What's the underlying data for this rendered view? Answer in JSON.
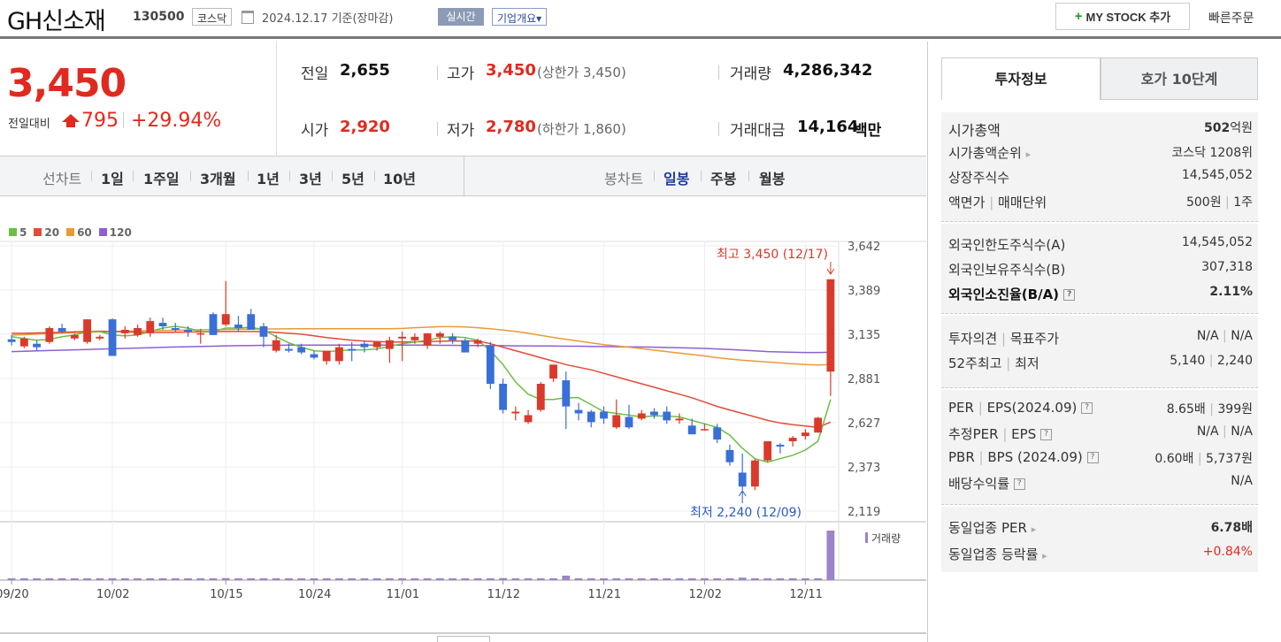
{
  "header": {
    "company": "GH신소재",
    "code": "130500",
    "market": "코스닥",
    "asof": "2024.12.17 기준(장마감)",
    "realtime": "실시간",
    "overview": "기업개요",
    "overview_caret": "▾",
    "mystock_plus": "+",
    "mystock": "MY STOCK 추가",
    "quick_order": "빠른주문"
  },
  "price": {
    "current": "3,450",
    "change_label": "전일대비",
    "change": "795",
    "change_pct": "+29.94%",
    "prev_label": "전일",
    "prev": "2,655",
    "open_label": "시가",
    "open": "2,920",
    "high_label": "고가",
    "high": "3,450",
    "upper_limit": "(상한가 3,450)",
    "low_label": "저가",
    "low": "2,780",
    "lower_limit": "(하한가 1,860)",
    "vol_label": "거래량",
    "vol": "4,286,342",
    "amt_label": "거래대금",
    "amt": "14,164",
    "amt_unit": "백만"
  },
  "tabs": {
    "line_label": "선차트",
    "periods": [
      "1일",
      "1주일",
      "3개월",
      "1년",
      "3년",
      "5년",
      "10년"
    ],
    "candle_label": "봉차트",
    "candles": [
      "일봉",
      "주봉",
      "월봉"
    ],
    "active_candle": "일봉"
  },
  "chart_data": {
    "type": "candlestick",
    "moving_averages": [
      "5",
      "20",
      "60",
      "120"
    ],
    "ma_colors": [
      "#6cbf45",
      "#e24b3b",
      "#e89a3a",
      "#8d5fd3"
    ],
    "y_ticks": [
      3642,
      3389,
      3135,
      2881,
      2627,
      2373,
      2119
    ],
    "ylim": [
      2119,
      3642
    ],
    "x_ticks": [
      "09/20",
      "10/02",
      "10/15",
      "10/24",
      "11/01",
      "11/12",
      "11/21",
      "12/02",
      "12/11"
    ],
    "max_label": "최고 3,450 (12/17)",
    "min_label": "최저 2,240 (12/09)",
    "volume_label": "거래량",
    "candles": [
      {
        "o": 3105,
        "h": 3130,
        "l": 3070,
        "c": 3090
      },
      {
        "o": 3065,
        "h": 3120,
        "l": 3055,
        "c": 3110
      },
      {
        "o": 3080,
        "h": 3100,
        "l": 3040,
        "c": 3060
      },
      {
        "o": 3090,
        "h": 3180,
        "l": 3080,
        "c": 3170
      },
      {
        "o": 3170,
        "h": 3195,
        "l": 3140,
        "c": 3150
      },
      {
        "o": 3110,
        "h": 3140,
        "l": 3100,
        "c": 3130
      },
      {
        "o": 3090,
        "h": 3220,
        "l": 3080,
        "c": 3220
      },
      {
        "o": 3110,
        "h": 3130,
        "l": 3100,
        "c": 3120
      },
      {
        "o": 3220,
        "h": 3225,
        "l": 3010,
        "c": 3010
      },
      {
        "o": 3140,
        "h": 3180,
        "l": 3110,
        "c": 3160
      },
      {
        "o": 3130,
        "h": 3190,
        "l": 3120,
        "c": 3170
      },
      {
        "o": 3140,
        "h": 3230,
        "l": 3120,
        "c": 3210
      },
      {
        "o": 3200,
        "h": 3230,
        "l": 3160,
        "c": 3180
      },
      {
        "o": 3170,
        "h": 3200,
        "l": 3150,
        "c": 3160
      },
      {
        "o": 3160,
        "h": 3180,
        "l": 3120,
        "c": 3150
      },
      {
        "o": 3140,
        "h": 3165,
        "l": 3080,
        "c": 3140
      },
      {
        "o": 3250,
        "h": 3260,
        "l": 3130,
        "c": 3130
      },
      {
        "o": 3190,
        "h": 3440,
        "l": 3180,
        "c": 3250
      },
      {
        "o": 3190,
        "h": 3240,
        "l": 3150,
        "c": 3170
      },
      {
        "o": 3250,
        "h": 3280,
        "l": 3160,
        "c": 3160
      },
      {
        "o": 3180,
        "h": 3200,
        "l": 3060,
        "c": 3120
      },
      {
        "o": 3040,
        "h": 3130,
        "l": 3030,
        "c": 3100
      },
      {
        "o": 3050,
        "h": 3080,
        "l": 3030,
        "c": 3040
      },
      {
        "o": 3060,
        "h": 3080,
        "l": 3020,
        "c": 3030
      },
      {
        "o": 3020,
        "h": 3040,
        "l": 2990,
        "c": 3000
      },
      {
        "o": 2980,
        "h": 3040,
        "l": 2960,
        "c": 3040
      },
      {
        "o": 2980,
        "h": 3080,
        "l": 2960,
        "c": 3060
      },
      {
        "o": 3050,
        "h": 3090,
        "l": 2980,
        "c": 3040
      },
      {
        "o": 3080,
        "h": 3100,
        "l": 3030,
        "c": 3060
      },
      {
        "o": 3060,
        "h": 3090,
        "l": 3040,
        "c": 3090
      },
      {
        "o": 3050,
        "h": 3120,
        "l": 2970,
        "c": 3100
      },
      {
        "o": 3110,
        "h": 3150,
        "l": 2980,
        "c": 3120
      },
      {
        "o": 3100,
        "h": 3140,
        "l": 3080,
        "c": 3120
      },
      {
        "o": 3070,
        "h": 3140,
        "l": 3050,
        "c": 3140
      },
      {
        "o": 3120,
        "h": 3150,
        "l": 3080,
        "c": 3140
      },
      {
        "o": 3120,
        "h": 3140,
        "l": 3080,
        "c": 3100
      },
      {
        "o": 3100,
        "h": 3110,
        "l": 3030,
        "c": 3030
      },
      {
        "o": 3080,
        "h": 3110,
        "l": 3060,
        "c": 3100
      },
      {
        "o": 3070,
        "h": 3090,
        "l": 2820,
        "c": 2850
      },
      {
        "o": 2850,
        "h": 2880,
        "l": 2680,
        "c": 2700
      },
      {
        "o": 2680,
        "h": 2720,
        "l": 2640,
        "c": 2690
      },
      {
        "o": 2630,
        "h": 2700,
        "l": 2620,
        "c": 2670
      },
      {
        "o": 2700,
        "h": 2860,
        "l": 2690,
        "c": 2850
      },
      {
        "o": 2880,
        "h": 2960,
        "l": 2860,
        "c": 2960
      },
      {
        "o": 2870,
        "h": 2920,
        "l": 2590,
        "c": 2720
      },
      {
        "o": 2700,
        "h": 2740,
        "l": 2640,
        "c": 2680
      },
      {
        "o": 2690,
        "h": 2700,
        "l": 2600,
        "c": 2630
      },
      {
        "o": 2690,
        "h": 2720,
        "l": 2620,
        "c": 2650
      },
      {
        "o": 2600,
        "h": 2760,
        "l": 2590,
        "c": 2670
      },
      {
        "o": 2660,
        "h": 2730,
        "l": 2590,
        "c": 2600
      },
      {
        "o": 2650,
        "h": 2700,
        "l": 2640,
        "c": 2680
      },
      {
        "o": 2690,
        "h": 2710,
        "l": 2650,
        "c": 2670
      },
      {
        "o": 2690,
        "h": 2720,
        "l": 2620,
        "c": 2640
      },
      {
        "o": 2640,
        "h": 2680,
        "l": 2620,
        "c": 2650
      },
      {
        "o": 2610,
        "h": 2650,
        "l": 2560,
        "c": 2560
      },
      {
        "o": 2590,
        "h": 2620,
        "l": 2580,
        "c": 2590
      },
      {
        "o": 2600,
        "h": 2620,
        "l": 2510,
        "c": 2530
      },
      {
        "o": 2470,
        "h": 2500,
        "l": 2380,
        "c": 2400
      },
      {
        "o": 2340,
        "h": 2450,
        "l": 2240,
        "c": 2260
      },
      {
        "o": 2260,
        "h": 2420,
        "l": 2240,
        "c": 2410
      },
      {
        "o": 2410,
        "h": 2520,
        "l": 2400,
        "c": 2520
      },
      {
        "o": 2500,
        "h": 2510,
        "l": 2450,
        "c": 2490
      },
      {
        "o": 2520,
        "h": 2550,
        "l": 2490,
        "c": 2540
      },
      {
        "o": 2550,
        "h": 2590,
        "l": 2530,
        "c": 2570
      },
      {
        "o": 2570,
        "h": 2660,
        "l": 2570,
        "c": 2655
      },
      {
        "o": 2920,
        "h": 3450,
        "l": 2780,
        "c": 3450
      }
    ],
    "ma5": [
      3120,
      3110,
      3100,
      3105,
      3120,
      3130,
      3150,
      3150,
      3130,
      3125,
      3130,
      3150,
      3170,
      3180,
      3170,
      3150,
      3150,
      3170,
      3170,
      3175,
      3160,
      3120,
      3085,
      3060,
      3040,
      3035,
      3040,
      3045,
      3045,
      3050,
      3065,
      3080,
      3090,
      3100,
      3115,
      3120,
      3115,
      3100,
      3040,
      2960,
      2860,
      2790,
      2760,
      2760,
      2770,
      2770,
      2730,
      2690,
      2680,
      2670,
      2660,
      2665,
      2665,
      2660,
      2640,
      2620,
      2600,
      2555,
      2480,
      2420,
      2400,
      2420,
      2440,
      2470,
      2520,
      2760
    ],
    "ma20": [
      3140,
      3140,
      3142,
      3144,
      3146,
      3148,
      3150,
      3152,
      3150,
      3148,
      3146,
      3145,
      3145,
      3146,
      3147,
      3148,
      3149,
      3150,
      3150,
      3150,
      3150,
      3145,
      3140,
      3135,
      3125,
      3115,
      3108,
      3100,
      3095,
      3092,
      3090,
      3090,
      3091,
      3092,
      3094,
      3096,
      3096,
      3096,
      3080,
      3060,
      3040,
      3020,
      3000,
      2980,
      2960,
      2945,
      2930,
      2910,
      2890,
      2870,
      2850,
      2830,
      2810,
      2790,
      2770,
      2745,
      2720,
      2700,
      2680,
      2660,
      2640,
      2625,
      2615,
      2608,
      2600,
      2630
    ],
    "ma60": [
      3130,
      3132,
      3135,
      3138,
      3141,
      3144,
      3146,
      3148,
      3150,
      3152,
      3154,
      3155,
      3156,
      3157,
      3158,
      3160,
      3161,
      3162,
      3163,
      3164,
      3165,
      3165,
      3166,
      3166,
      3166,
      3166,
      3166,
      3166,
      3166,
      3166,
      3166,
      3168,
      3172,
      3175,
      3178,
      3178,
      3176,
      3172,
      3166,
      3158,
      3150,
      3140,
      3128,
      3116,
      3105,
      3095,
      3085,
      3075,
      3068,
      3060,
      3052,
      3043,
      3035,
      3026,
      3018,
      3010,
      3000,
      2992,
      2985,
      2980,
      2975,
      2970,
      2965,
      2960,
      2958,
      2960
    ],
    "ma120": [
      3035,
      3037,
      3039,
      3041,
      3043,
      3045,
      3047,
      3049,
      3051,
      3053,
      3055,
      3057,
      3059,
      3061,
      3063,
      3065,
      3066,
      3068,
      3069,
      3070,
      3071,
      3071,
      3072,
      3072,
      3072,
      3072,
      3072,
      3072,
      3072,
      3072,
      3072,
      3072,
      3072,
      3072,
      3071,
      3071,
      3070,
      3070,
      3069,
      3069,
      3068,
      3068,
      3067,
      3067,
      3066,
      3066,
      3065,
      3064,
      3063,
      3062,
      3061,
      3060,
      3058,
      3057,
      3055,
      3053,
      3050,
      3047,
      3043,
      3039,
      3035,
      3033,
      3031,
      3030,
      3030,
      3031
    ],
    "volume": [
      0.015,
      0.015,
      0.012,
      0.015,
      0.012,
      0.012,
      0.012,
      0.014,
      0.016,
      0.012,
      0.012,
      0.014,
      0.012,
      0.012,
      0.012,
      0.012,
      0.014,
      0.04,
      0.014,
      0.012,
      0.012,
      0.012,
      0.012,
      0.012,
      0.012,
      0.012,
      0.012,
      0.012,
      0.012,
      0.012,
      0.012,
      0.014,
      0.012,
      0.012,
      0.012,
      0.012,
      0.012,
      0.012,
      0.03,
      0.04,
      0.02,
      0.014,
      0.02,
      0.03,
      0.09,
      0.02,
      0.012,
      0.012,
      0.012,
      0.012,
      0.012,
      0.012,
      0.012,
      0.012,
      0.012,
      0.012,
      0.014,
      0.03,
      0.05,
      0.03,
      0.02,
      0.012,
      0.012,
      0.012,
      0.014,
      1.0
    ]
  },
  "info": {
    "tab_inv": "투자정보",
    "tab_order": "호가 10단계",
    "market_cap_label": "시가총액",
    "market_cap": "502",
    "market_cap_unit": "억원",
    "cap_rank_label": "시가총액순위",
    "cap_rank": "코스닥 1208위",
    "shares_label": "상장주식수",
    "shares": "14,545,052",
    "par_label": "액면가",
    "unit_label": "매매단위",
    "par": "500원",
    "unit": "1주",
    "foreign_limit_label": "외국인한도주식수(A)",
    "foreign_limit": "14,545,052",
    "foreign_hold_label": "외국인보유주식수(B)",
    "foreign_hold": "307,318",
    "foreign_ratio_label": "외국인소진율(B/A)",
    "foreign_ratio": "2.11%",
    "opinion_label": "투자의견",
    "target_label": "목표주가",
    "opinion": "N/A",
    "target": "N/A",
    "w52_label": "52주최고",
    "w52_low_label": "최저",
    "w52_high": "5,140",
    "w52_low": "2,240",
    "per_label": "PER",
    "eps_label": "EPS(2024.09)",
    "per": "8.65배",
    "eps": "399원",
    "eper_label": "추정PER",
    "eeps_label": "EPS",
    "eper": "N/A",
    "eeps": "N/A",
    "pbr_label": "PBR",
    "bps_label": "BPS (2024.09)",
    "pbr": "0.60배",
    "bps": "5,737원",
    "div_label": "배당수익률",
    "div": "N/A",
    "ind_per_label": "동일업종 PER",
    "ind_per": "6.78배",
    "ind_chg_label": "동일업종 등락률",
    "ind_chg": "+0.84%"
  }
}
